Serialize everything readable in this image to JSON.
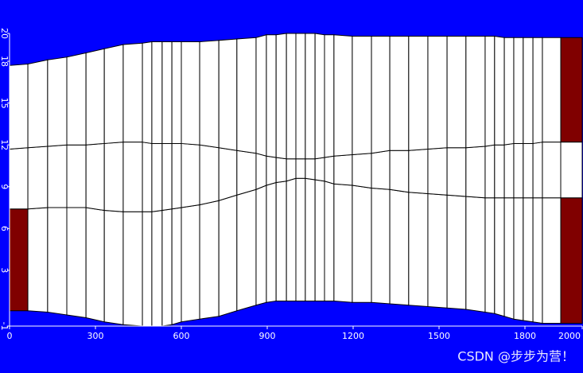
{
  "chart_data": {
    "type": "mesh",
    "xlim": [
      0,
      2000
    ],
    "xticks": [
      0,
      300,
      600,
      900,
      1200,
      1500,
      1800,
      2000
    ],
    "ylim": [
      -1,
      20
    ],
    "yticks": [
      -1,
      3,
      6,
      9,
      12,
      15,
      18,
      20
    ],
    "x": [
      0,
      64,
      133,
      200,
      267,
      331,
      397,
      464,
      497,
      533,
      567,
      600,
      664,
      731,
      794,
      861,
      897,
      931,
      967,
      1000,
      1033,
      1067,
      1100,
      1133,
      1197,
      1264,
      1328,
      1394,
      1461,
      1528,
      1594,
      1661,
      1694,
      1728,
      1761,
      1794,
      1828,
      1861,
      1925,
      2000
    ],
    "series": [
      {
        "name": "bottom",
        "values": [
          0.1,
          0.1,
          0.0,
          -0.2,
          -0.4,
          -0.7,
          -0.9,
          -1,
          -1,
          -1,
          -0.9,
          -0.7,
          -0.5,
          -0.3,
          0.1,
          0.5,
          0.7,
          0.8,
          0.8,
          0.8,
          0.8,
          0.8,
          0.8,
          0.8,
          0.7,
          0.7,
          0.6,
          0.5,
          0.4,
          0.3,
          0.2,
          0.0,
          -0.1,
          -0.3,
          -0.5,
          -0.6,
          -0.7,
          -0.8,
          -0.8,
          -0.8
        ]
      },
      {
        "name": "lower",
        "values": [
          7.4,
          7.4,
          7.5,
          7.5,
          7.5,
          7.3,
          7.2,
          7.2,
          7.2,
          7.3,
          7.4,
          7.5,
          7.7,
          8.0,
          8.4,
          8.8,
          9.1,
          9.3,
          9.4,
          9.6,
          9.6,
          9.5,
          9.4,
          9.2,
          9.1,
          8.9,
          8.8,
          8.6,
          8.5,
          8.4,
          8.3,
          8.2,
          8.2,
          8.2,
          8.2,
          8.2,
          8.2,
          8.2,
          8.2,
          8.2
        ]
      },
      {
        "name": "upper",
        "values": [
          11.7,
          11.8,
          11.9,
          12.0,
          12.0,
          12.1,
          12.2,
          12.2,
          12.1,
          12.1,
          12.1,
          12.1,
          12.0,
          11.8,
          11.6,
          11.4,
          11.2,
          11.1,
          11.0,
          11.0,
          11.0,
          11.0,
          11.1,
          11.2,
          11.3,
          11.4,
          11.6,
          11.6,
          11.7,
          11.8,
          11.8,
          11.9,
          12.0,
          12.0,
          12.1,
          12.1,
          12.1,
          12.2,
          12.2,
          12.2
        ]
      },
      {
        "name": "top",
        "values": [
          17.7,
          17.8,
          18.1,
          18.3,
          18.6,
          18.9,
          19.2,
          19.3,
          19.4,
          19.4,
          19.4,
          19.4,
          19.4,
          19.5,
          19.6,
          19.7,
          19.9,
          19.9,
          20,
          20,
          20,
          20,
          19.9,
          19.9,
          19.8,
          19.8,
          19.8,
          19.8,
          19.8,
          19.8,
          19.8,
          19.8,
          19.8,
          19.7,
          19.7,
          19.7,
          19.7,
          19.7,
          19.7,
          19.7
        ]
      }
    ],
    "highlighted_cells": [
      {
        "column": 0,
        "layer": 0
      },
      {
        "column": 38,
        "layer": 0
      },
      {
        "column": 38,
        "layer": 2
      }
    ],
    "colors": {
      "background": "#0000ff",
      "cell": "#ffffff",
      "highlight": "#800000",
      "axis": "#ffffff"
    },
    "watermark": "CSDN @步步为营！"
  }
}
